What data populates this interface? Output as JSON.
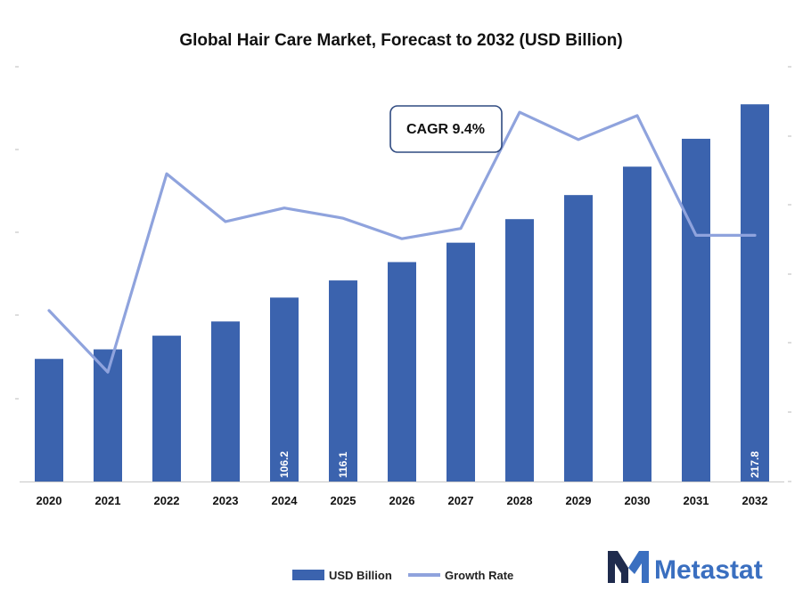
{
  "colors": {
    "bar": "#3b63ae",
    "line": "#8fa3dd",
    "brand_blue": "#3a6fc0",
    "brand_dark": "#1f2b4d",
    "axis": "#c8c8c8"
  },
  "brand": {
    "name": "Metastat",
    "logo_icon": "metastat-m-logo-icon"
  },
  "chart_data": {
    "type": "bar",
    "title": "Global Hair Care Market, Forecast to 2032 (USD Billion)",
    "categories": [
      "2020",
      "2021",
      "2022",
      "2023",
      "2024",
      "2025",
      "2026",
      "2027",
      "2028",
      "2029",
      "2030",
      "2031",
      "2032"
    ],
    "series": [
      {
        "name": "USD Billion",
        "type": "bar",
        "values": [
          70.8,
          76.3,
          84.2,
          92.4,
          106.2,
          116.1,
          126.7,
          137.9,
          151.5,
          165.4,
          181.8,
          197.9,
          217.8
        ]
      },
      {
        "name": "Growth Rate",
        "type": "line",
        "values": [
          6.5,
          5.6,
          8.5,
          7.8,
          8.0,
          7.85,
          7.55,
          7.7,
          9.4,
          9.0,
          9.35,
          7.6,
          7.6
        ]
      }
    ],
    "bar_labels": {
      "4": "106.2",
      "5": "116.1",
      "12": "217.8"
    },
    "annotation": "CAGR 9.4%",
    "ylim_left": [
      0,
      240
    ],
    "ylim_right": [
      4,
      10
    ],
    "legend_position": "bottom-center",
    "grid": false
  }
}
